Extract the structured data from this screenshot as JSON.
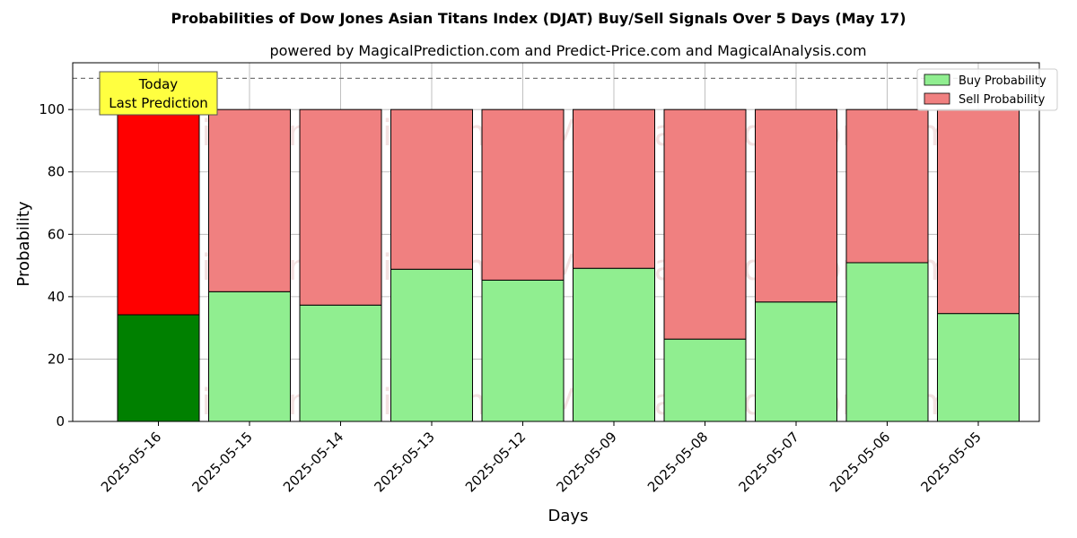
{
  "chart_data": {
    "type": "bar",
    "stacked": true,
    "title": "Probabilities of Dow Jones Asian Titans Index (DJAT) Buy/Sell Signals Over 5 Days (May 17)",
    "subtitle": "powered by MagicalPrediction.com and Predict-Price.com and MagicalAnalysis.com",
    "xlabel": "Days",
    "ylabel": "Probability",
    "ylim": [
      0,
      115
    ],
    "yticks": [
      0,
      20,
      40,
      60,
      80,
      100
    ],
    "grid": true,
    "legend_placement": "top-right",
    "reference_line": 110,
    "categories": [
      "2025-05-16",
      "2025-05-15",
      "2025-05-14",
      "2025-05-13",
      "2025-05-12",
      "2025-05-09",
      "2025-05-08",
      "2025-05-07",
      "2025-05-06",
      "2025-05-05"
    ],
    "series": [
      {
        "name": "Buy Probability",
        "values": [
          34.2,
          41.6,
          37.3,
          48.8,
          45.3,
          49.1,
          26.4,
          38.3,
          50.9,
          34.6
        ],
        "color": "#90ee90",
        "highlight_color": "#008000"
      },
      {
        "name": "Sell Probability",
        "values": [
          65.8,
          58.4,
          62.7,
          51.2,
          54.7,
          50.9,
          73.6,
          61.7,
          49.1,
          65.4
        ],
        "color": "#f08080",
        "highlight_color": "#ff0000"
      }
    ],
    "highlight_index": 0,
    "annotation": {
      "line1": "Today",
      "line2": "Last Prediction",
      "background": "#ffff40"
    },
    "watermarks": [
      "MagicalAnalysis.com",
      "MagicalPrediction.com"
    ]
  }
}
